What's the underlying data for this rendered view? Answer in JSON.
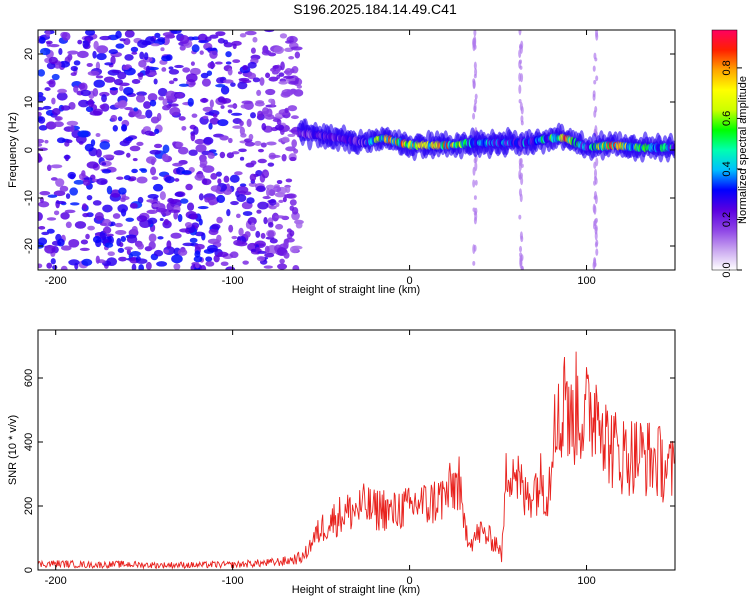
{
  "title": "S196.2025.184.14.49.C41",
  "chart_data": [
    {
      "type": "heatmap",
      "xlabel": "Height of straight line (km)",
      "ylabel": "Frequency (Hz)",
      "xlim": [
        -210,
        150
      ],
      "ylim": [
        -25,
        25
      ],
      "xticks": [
        -200,
        -100,
        0,
        100
      ],
      "yticks": [
        -20,
        -10,
        0,
        10,
        20
      ],
      "colorbar": {
        "label": "Normalized spectral amplitude",
        "range": [
          0,
          0.95
        ],
        "ticks": [
          0.0,
          0.2,
          0.4,
          0.6,
          0.8
        ],
        "colormap": [
          "#ffffff",
          "#c9a6f0",
          "#8e44e6",
          "#5a00e0",
          "#0000ff",
          "#00bfff",
          "#00ffb0",
          "#00ff00",
          "#ccff00",
          "#ffff00",
          "#ffa500",
          "#ff2000",
          "#ff0060"
        ]
      },
      "noise_region_x": [
        -210,
        -62
      ],
      "signal_band": [
        {
          "x": -62,
          "freq": 3.5,
          "amp": 0.25
        },
        {
          "x": -50,
          "freq": 3,
          "amp": 0.3
        },
        {
          "x": -40,
          "freq": 2.5,
          "amp": 0.3
        },
        {
          "x": -25,
          "freq": 1.5,
          "amp": 0.3
        },
        {
          "x": -15,
          "freq": 2.5,
          "amp": 0.9
        },
        {
          "x": 0,
          "freq": 1,
          "amp": 0.9
        },
        {
          "x": 12,
          "freq": 1,
          "amp": 0.9
        },
        {
          "x": 25,
          "freq": 1,
          "amp": 0.9
        },
        {
          "x": 35,
          "freq": 1.5,
          "amp": 0.5
        },
        {
          "x": 50,
          "freq": 1.5,
          "amp": 0.45
        },
        {
          "x": 65,
          "freq": 1.5,
          "amp": 0.45
        },
        {
          "x": 80,
          "freq": 2.5,
          "amp": 0.6
        },
        {
          "x": 88,
          "freq": 2.5,
          "amp": 0.9
        },
        {
          "x": 100,
          "freq": 0.5,
          "amp": 0.45
        },
        {
          "x": 115,
          "freq": 1,
          "amp": 0.95
        },
        {
          "x": 130,
          "freq": 0.5,
          "amp": 0.6
        },
        {
          "x": 150,
          "freq": 0.5,
          "amp": 0.5
        }
      ],
      "vertical_streaks_x": [
        37,
        63,
        105
      ]
    },
    {
      "type": "line",
      "xlabel": "Height of straight line (km)",
      "ylabel": "SNR (10 * v/v)",
      "xlim": [
        -210,
        150
      ],
      "ylim": [
        0,
        750
      ],
      "xticks": [
        -200,
        -100,
        0,
        100
      ],
      "yticks": [
        0,
        200,
        400,
        600
      ],
      "series": [
        {
          "color": "#e8221e",
          "x": [
            -210,
            -200,
            -190,
            -180,
            -170,
            -160,
            -150,
            -140,
            -130,
            -120,
            -110,
            -100,
            -90,
            -80,
            -70,
            -60,
            -55,
            -50,
            -45,
            -40,
            -35,
            -30,
            -25,
            -20,
            -15,
            -10,
            -5,
            0,
            5,
            10,
            15,
            20,
            25,
            28,
            30,
            35,
            40,
            45,
            50,
            52,
            55,
            58,
            60,
            65,
            70,
            75,
            78,
            80,
            82,
            85,
            88,
            90,
            95,
            98,
            100,
            105,
            108,
            110,
            115,
            120,
            125,
            130,
            135,
            140,
            145,
            150
          ],
          "y": [
            18,
            20,
            18,
            16,
            17,
            18,
            16,
            15,
            16,
            15,
            17,
            16,
            20,
            22,
            28,
            40,
            90,
            130,
            150,
            170,
            180,
            190,
            200,
            185,
            195,
            175,
            195,
            190,
            215,
            200,
            220,
            230,
            260,
            280,
            150,
            90,
            120,
            100,
            80,
            40,
            320,
            340,
            310,
            220,
            260,
            280,
            240,
            320,
            580,
            400,
            650,
            440,
            520,
            470,
            480,
            510,
            560,
            420,
            380,
            360,
            360,
            360,
            350,
            340,
            320,
            300
          ]
        }
      ]
    }
  ]
}
